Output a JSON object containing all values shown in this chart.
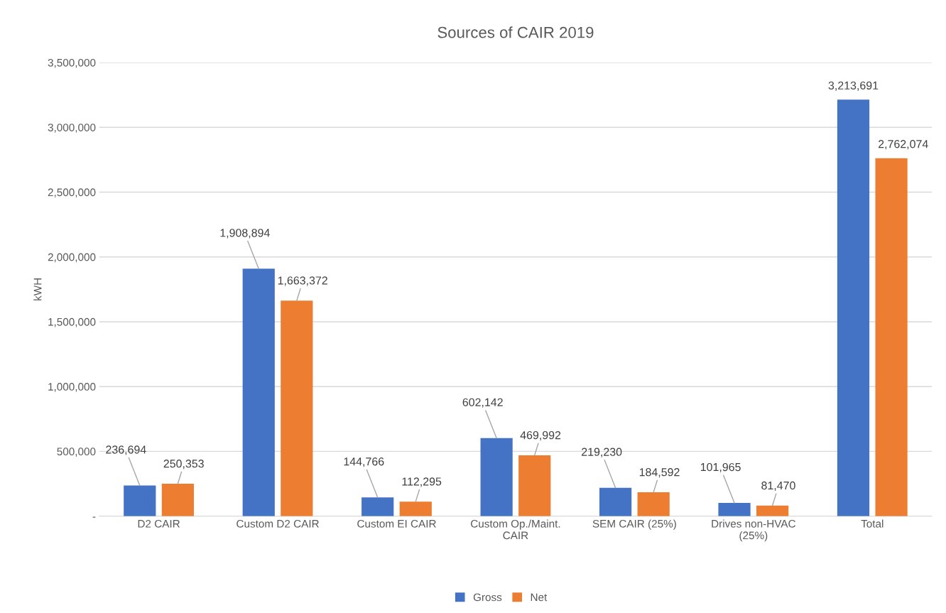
{
  "chart_data": {
    "type": "bar",
    "title": "Sources of CAIR 2019",
    "ylabel": "kWH",
    "categories": [
      "D2 CAIR",
      "Custom D2 CAIR",
      "Custom EI CAIR",
      "Custom Op./Maint.\nCAIR",
      "SEM CAIR (25%)",
      "Drives non-HVAC\n(25%)",
      "Total"
    ],
    "series": [
      {
        "name": "Gross",
        "color": "#4472c4",
        "values": [
          236694,
          1908894,
          144766,
          602142,
          219230,
          101965,
          3213691
        ],
        "value_labels": [
          "236,694",
          "1,908,894",
          "144,766",
          "602,142",
          "219,230",
          "101,965",
          "3,213,691"
        ]
      },
      {
        "name": "Net",
        "color": "#ed7d31",
        "values": [
          250353,
          1663372,
          112295,
          469992,
          184592,
          81470,
          2762074
        ],
        "value_labels": [
          "250,353",
          "1,663,372",
          "112,295",
          "469,992",
          "184,592",
          "81,470",
          "2,762,074"
        ]
      }
    ],
    "ylim": [
      0,
      3500000
    ],
    "yticks": [
      {
        "value": 0,
        "label": "-"
      },
      {
        "value": 500000,
        "label": "500,000"
      },
      {
        "value": 1000000,
        "label": "1,000,000"
      },
      {
        "value": 1500000,
        "label": "1,500,000"
      },
      {
        "value": 2000000,
        "label": "2,000,000"
      },
      {
        "value": 2500000,
        "label": "2,500,000"
      },
      {
        "value": 3000000,
        "label": "3,000,000"
      },
      {
        "value": 3500000,
        "label": "3,500,000"
      }
    ],
    "grid": "y",
    "legend": "bottom"
  }
}
